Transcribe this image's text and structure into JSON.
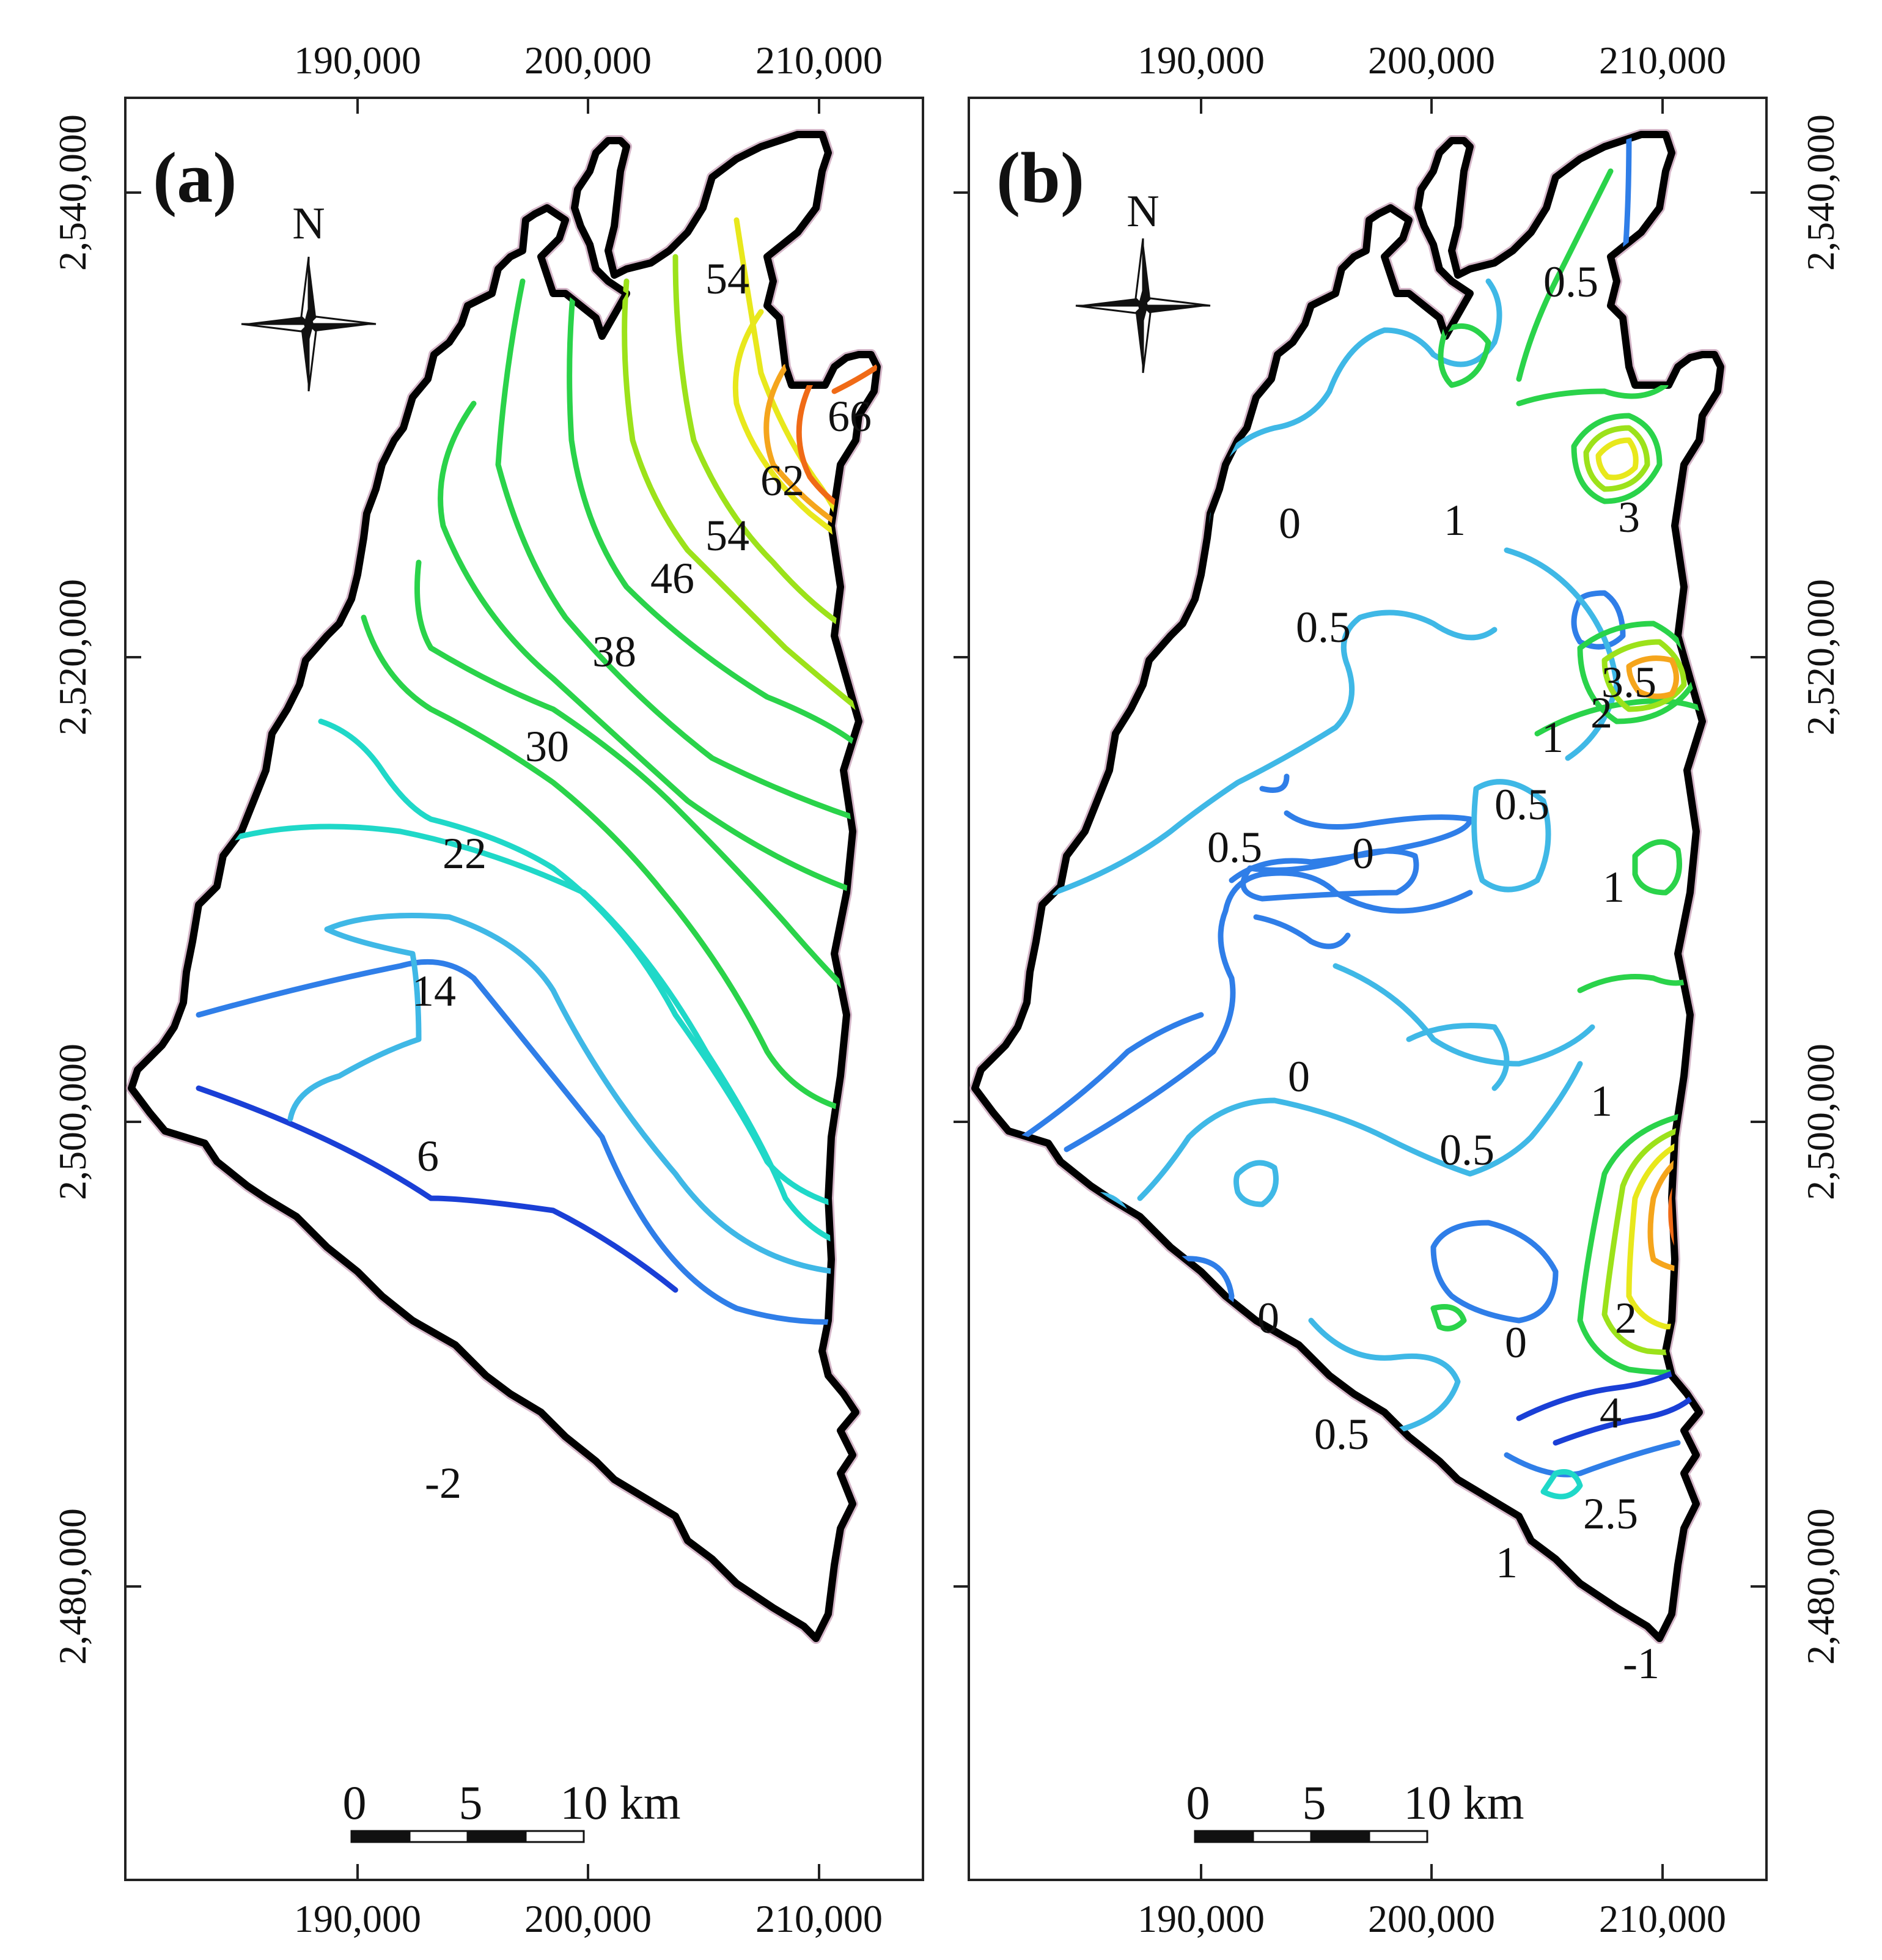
{
  "figure": {
    "x_tick_labels": [
      "190,000",
      "200,000",
      "210,000"
    ],
    "y_tick_labels": [
      "2,540,000",
      "2,520,000",
      "2,500,000",
      "2,480,000"
    ],
    "colors": {
      "frame": "#222222",
      "boundary": "#000000",
      "boundary_halo": "#b07a9a",
      "contour_scale": [
        "#1a3fd6",
        "#2f7ee8",
        "#3fb8e6",
        "#1fd8c8",
        "#2ad34a",
        "#9ce21a",
        "#e8e81c",
        "#f5a51c",
        "#f06a16"
      ]
    }
  },
  "panels": [
    {
      "tag": "(a)",
      "north_label": "N",
      "scale_bar": {
        "labels": [
          "0",
          "5",
          "10 km"
        ]
      },
      "contour_labels": [
        "54",
        "66",
        "62",
        "54",
        "46",
        "38",
        "30",
        "22",
        "14",
        "6",
        "-2"
      ]
    },
    {
      "tag": "(b)",
      "north_label": "N",
      "scale_bar": {
        "labels": [
          "0",
          "5",
          "10 km"
        ]
      },
      "contour_labels": [
        "0.5",
        "0",
        "1",
        "3",
        "0.5",
        "3.5",
        "2",
        "1",
        "0.5",
        "0.5",
        "0",
        "1",
        "0",
        "1",
        "0.5",
        "0",
        "0",
        "2",
        "4",
        "0.5",
        "2.5",
        "1",
        "-1"
      ]
    }
  ]
}
